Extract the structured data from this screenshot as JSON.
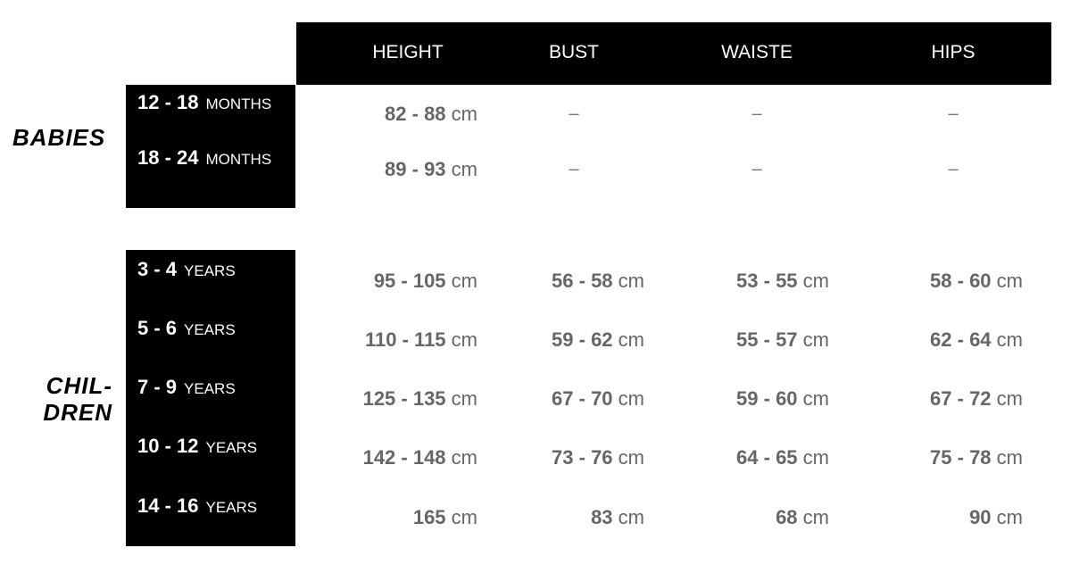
{
  "columns": [
    "HEIGHT",
    "BUST",
    "WAISTE",
    "HIPS"
  ],
  "groups": {
    "babies": {
      "label": "BABIES",
      "rows": [
        {
          "range": "12 - 18",
          "unit": "MONTHS",
          "values": [
            "82 - 88",
            "-",
            "-",
            "-"
          ]
        },
        {
          "range": "18 - 24",
          "unit": "MONTHS",
          "values": [
            "89 - 93",
            "-",
            "-",
            "-"
          ]
        }
      ]
    },
    "children": {
      "label_line1": "CHIL-",
      "label_line2": "DREN",
      "rows": [
        {
          "range": "3 - 4",
          "unit": "YEARS",
          "values": [
            "95 - 105",
            "56 - 58",
            "53 - 55",
            "58 - 60"
          ]
        },
        {
          "range": "5 - 6",
          "unit": "YEARS",
          "values": [
            "110 - 115",
            "59 - 62",
            "55 - 57",
            "62 - 64"
          ]
        },
        {
          "range": "7 - 9",
          "unit": "YEARS",
          "values": [
            "125 - 135",
            "67 - 70",
            "59 - 60",
            "67 - 72"
          ]
        },
        {
          "range": "10 - 12",
          "unit": "YEARS",
          "values": [
            "142 - 148",
            "73 - 76",
            "64 - 65",
            "75 - 78"
          ]
        },
        {
          "range": "14 - 16",
          "unit": "YEARS",
          "values": [
            "165",
            "83",
            "68",
            "90"
          ]
        }
      ]
    }
  },
  "value_unit": "cm",
  "colors": {
    "header_bg": "#000000",
    "value_text": "#666666"
  }
}
